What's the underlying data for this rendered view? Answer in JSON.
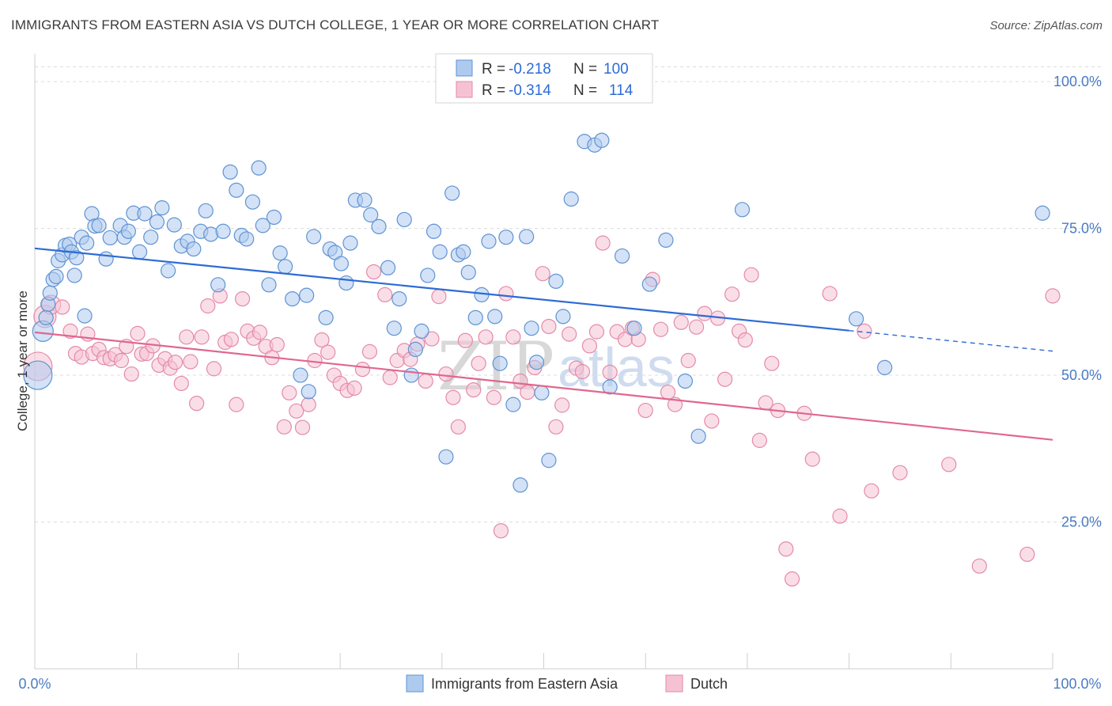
{
  "title": "IMMIGRANTS FROM EASTERN ASIA VS DUTCH COLLEGE, 1 YEAR OR MORE CORRELATION CHART",
  "source": "Source: ZipAtlas.com",
  "watermark": {
    "zip": "ZIP",
    "atlas": "atlas"
  },
  "legend": {
    "r_label": "R =",
    "n_label": "N =",
    "rows": [
      {
        "r": "-0.218",
        "n": "100"
      },
      {
        "r": "-0.314",
        "n": "114"
      }
    ]
  },
  "colors": {
    "blue_fill": "#aecbef",
    "blue_stroke": "#5f93d3",
    "blue_line": "#2d6bd6",
    "pink_fill": "#f6c2d3",
    "pink_stroke": "#e48aa8",
    "pink_line": "#e0678f",
    "grid": "#dcdcdc",
    "tick_label": "#4a7bc4"
  },
  "chart_data": {
    "type": "scatter",
    "title": "IMMIGRANTS FROM EASTERN ASIA VS DUTCH COLLEGE, 1 YEAR OR MORE CORRELATION CHART",
    "xlabel": "",
    "ylabel": "College, 1 year or more",
    "xlim": [
      0,
      100
    ],
    "ylim": [
      0,
      105
    ],
    "x_tick_labels": [
      "0.0%",
      "100.0%"
    ],
    "y_ticks": [
      {
        "value": 25,
        "label": "25.0%"
      },
      {
        "value": 50,
        "label": "50.0%"
      },
      {
        "value": 75,
        "label": "75.0%"
      },
      {
        "value": 100,
        "label": "100.0%"
      }
    ],
    "grid": true,
    "legend_position": "bottom",
    "series": [
      {
        "name": "Immigrants from Eastern Asia",
        "r": -0.218,
        "n": 100,
        "trend": {
          "x0": 0,
          "y0": 71.6,
          "x1": 80,
          "y1": 57.6,
          "dash_to_x": 100,
          "dash_to_y": 54.1
        },
        "points": [
          [
            0.3,
            50.0,
            18
          ],
          [
            0.8,
            57.5,
            13
          ],
          [
            1.1,
            59.8,
            9
          ],
          [
            1.3,
            62.1,
            9
          ],
          [
            1.5,
            64.0,
            9
          ],
          [
            1.8,
            66.3,
            9
          ],
          [
            2.1,
            66.8,
            9
          ],
          [
            2.3,
            69.5,
            9
          ],
          [
            2.7,
            70.5,
            9
          ],
          [
            3.0,
            72.1,
            9
          ],
          [
            3.4,
            72.3,
            9
          ],
          [
            3.6,
            71.0,
            9
          ],
          [
            3.9,
            67.0,
            9
          ],
          [
            4.1,
            70.0,
            9
          ],
          [
            4.9,
            60.1,
            9
          ],
          [
            4.6,
            73.5,
            9
          ],
          [
            5.1,
            72.5,
            9
          ],
          [
            5.6,
            77.5,
            9
          ],
          [
            5.9,
            75.4,
            9
          ],
          [
            6.3,
            75.5,
            9
          ],
          [
            7.0,
            69.8,
            9
          ],
          [
            7.4,
            73.4,
            9
          ],
          [
            8.4,
            75.5,
            9
          ],
          [
            8.8,
            73.5,
            9
          ],
          [
            9.2,
            74.5,
            9
          ],
          [
            9.7,
            77.6,
            9
          ],
          [
            10.3,
            71.0,
            9
          ],
          [
            10.8,
            77.5,
            9
          ],
          [
            11.4,
            73.5,
            9
          ],
          [
            12.0,
            76.1,
            9
          ],
          [
            12.5,
            78.5,
            9
          ],
          [
            13.1,
            67.8,
            9
          ],
          [
            13.7,
            75.6,
            9
          ],
          [
            14.4,
            72.0,
            9
          ],
          [
            15.0,
            72.8,
            9
          ],
          [
            15.6,
            71.5,
            9
          ],
          [
            16.3,
            74.5,
            9
          ],
          [
            16.8,
            78.0,
            9
          ],
          [
            17.3,
            74.0,
            9
          ],
          [
            18.0,
            65.4,
            9
          ],
          [
            18.5,
            74.5,
            9
          ],
          [
            19.2,
            84.6,
            9
          ],
          [
            19.8,
            81.5,
            9
          ],
          [
            20.3,
            73.8,
            9
          ],
          [
            20.8,
            73.2,
            9
          ],
          [
            21.4,
            79.5,
            9
          ],
          [
            22.0,
            85.3,
            9
          ],
          [
            22.4,
            75.5,
            9
          ],
          [
            23.0,
            65.4,
            9
          ],
          [
            23.5,
            76.9,
            9
          ],
          [
            24.1,
            70.8,
            9
          ],
          [
            24.6,
            68.5,
            9
          ],
          [
            25.3,
            63.0,
            9
          ],
          [
            26.1,
            50.0,
            9
          ],
          [
            26.7,
            63.6,
            9
          ],
          [
            26.9,
            47.2,
            9
          ],
          [
            27.4,
            73.6,
            9
          ],
          [
            28.6,
            59.8,
            9
          ],
          [
            29.0,
            71.5,
            9
          ],
          [
            29.5,
            70.9,
            9
          ],
          [
            30.1,
            69.0,
            9
          ],
          [
            30.6,
            65.7,
            9
          ],
          [
            31.0,
            72.5,
            9
          ],
          [
            31.5,
            79.8,
            9
          ],
          [
            32.4,
            79.8,
            9
          ],
          [
            33.0,
            77.3,
            9
          ],
          [
            33.8,
            75.3,
            9
          ],
          [
            34.7,
            68.3,
            9
          ],
          [
            35.3,
            58.0,
            9
          ],
          [
            35.8,
            63.0,
            9
          ],
          [
            36.3,
            76.5,
            9
          ],
          [
            37.0,
            50.0,
            9
          ],
          [
            37.4,
            54.4,
            9
          ],
          [
            38.0,
            57.5,
            9
          ],
          [
            38.6,
            67.0,
            9
          ],
          [
            39.2,
            74.5,
            9
          ],
          [
            39.8,
            71.0,
            9
          ],
          [
            40.4,
            36.1,
            9
          ],
          [
            41.0,
            81.0,
            9
          ],
          [
            41.6,
            70.5,
            9
          ],
          [
            42.1,
            71.0,
            9
          ],
          [
            42.6,
            67.5,
            9
          ],
          [
            43.3,
            59.8,
            9
          ],
          [
            43.9,
            63.7,
            9
          ],
          [
            44.6,
            72.8,
            9
          ],
          [
            45.2,
            60.0,
            9
          ],
          [
            45.7,
            52.0,
            9
          ],
          [
            46.3,
            73.5,
            9
          ],
          [
            47.0,
            45.0,
            9
          ],
          [
            47.7,
            31.3,
            9
          ],
          [
            48.3,
            73.6,
            9
          ],
          [
            48.8,
            58.0,
            9
          ],
          [
            49.3,
            52.2,
            9
          ],
          [
            49.8,
            47.0,
            9
          ],
          [
            50.5,
            35.5,
            9
          ],
          [
            51.2,
            66.0,
            9
          ],
          [
            51.9,
            60.0,
            9
          ],
          [
            52.7,
            80.0,
            9
          ],
          [
            54.0,
            89.8,
            9
          ],
          [
            55.0,
            89.2,
            9
          ],
          [
            55.7,
            90.0,
            9
          ],
          [
            56.5,
            48.0,
            9
          ],
          [
            57.7,
            70.3,
            9
          ],
          [
            58.9,
            58.0,
            9
          ],
          [
            60.4,
            65.5,
            9
          ],
          [
            62.0,
            73.0,
            9
          ],
          [
            63.9,
            49.0,
            9
          ],
          [
            65.2,
            39.6,
            9
          ],
          [
            69.5,
            78.2,
            9
          ],
          [
            80.7,
            59.6,
            9
          ],
          [
            83.5,
            51.3,
            9
          ],
          [
            99.0,
            77.6,
            9
          ]
        ]
      },
      {
        "name": "Dutch",
        "r": -0.314,
        "n": 114,
        "trend": {
          "x0": 0,
          "y0": 57.3,
          "x1": 100,
          "y1": 39.0
        },
        "points": [
          [
            0.3,
            51.5,
            18
          ],
          [
            1.0,
            60.0,
            14
          ],
          [
            1.6,
            62.0,
            12
          ],
          [
            2.7,
            61.6,
            9
          ],
          [
            3.5,
            57.5,
            9
          ],
          [
            4.0,
            53.7,
            9
          ],
          [
            4.6,
            53.1,
            9
          ],
          [
            5.2,
            57.0,
            9
          ],
          [
            5.7,
            53.7,
            9
          ],
          [
            6.3,
            54.4,
            9
          ],
          [
            6.8,
            53.0,
            9
          ],
          [
            7.4,
            52.8,
            9
          ],
          [
            7.9,
            53.5,
            9
          ],
          [
            8.5,
            52.5,
            9
          ],
          [
            9.0,
            54.9,
            9
          ],
          [
            9.5,
            50.2,
            9
          ],
          [
            10.1,
            57.1,
            9
          ],
          [
            10.5,
            53.6,
            9
          ],
          [
            11.0,
            53.7,
            9
          ],
          [
            11.6,
            55.0,
            9
          ],
          [
            12.2,
            51.7,
            9
          ],
          [
            12.8,
            52.8,
            9
          ],
          [
            13.3,
            51.2,
            9
          ],
          [
            13.8,
            52.2,
            9
          ],
          [
            14.4,
            48.6,
            9
          ],
          [
            14.9,
            56.5,
            9
          ],
          [
            15.3,
            52.3,
            9
          ],
          [
            15.9,
            45.2,
            9
          ],
          [
            16.4,
            56.5,
            9
          ],
          [
            17.0,
            61.8,
            9
          ],
          [
            17.6,
            51.1,
            9
          ],
          [
            18.2,
            63.5,
            9
          ],
          [
            18.7,
            55.6,
            9
          ],
          [
            19.3,
            56.1,
            9
          ],
          [
            19.8,
            45.0,
            9
          ],
          [
            20.4,
            63.0,
            9
          ],
          [
            20.9,
            57.5,
            9
          ],
          [
            21.5,
            56.3,
            9
          ],
          [
            22.1,
            57.3,
            9
          ],
          [
            22.7,
            54.9,
            9
          ],
          [
            23.3,
            53.0,
            9
          ],
          [
            23.8,
            55.2,
            9
          ],
          [
            24.5,
            41.2,
            9
          ],
          [
            25.0,
            47.0,
            9
          ],
          [
            25.7,
            43.9,
            9
          ],
          [
            26.3,
            41.1,
            9
          ],
          [
            26.9,
            45.0,
            9
          ],
          [
            27.5,
            52.5,
            9
          ],
          [
            28.2,
            56.0,
            9
          ],
          [
            28.8,
            53.9,
            9
          ],
          [
            29.4,
            50.0,
            9
          ],
          [
            30.0,
            48.6,
            9
          ],
          [
            30.7,
            47.4,
            9
          ],
          [
            31.4,
            47.8,
            9
          ],
          [
            32.2,
            51.0,
            9
          ],
          [
            32.9,
            54.0,
            9
          ],
          [
            33.3,
            67.6,
            9
          ],
          [
            34.4,
            63.7,
            9
          ],
          [
            34.9,
            49.6,
            9
          ],
          [
            35.6,
            52.5,
            9
          ],
          [
            36.3,
            54.2,
            9
          ],
          [
            36.9,
            52.7,
            9
          ],
          [
            37.6,
            55.3,
            9
          ],
          [
            38.4,
            49.0,
            9
          ],
          [
            39.0,
            56.2,
            9
          ],
          [
            39.7,
            63.4,
            9
          ],
          [
            40.4,
            50.2,
            9
          ],
          [
            41.1,
            46.2,
            9
          ],
          [
            41.6,
            41.2,
            9
          ],
          [
            42.3,
            55.9,
            9
          ],
          [
            43.1,
            47.5,
            9
          ],
          [
            43.6,
            52.0,
            9
          ],
          [
            44.3,
            56.5,
            9
          ],
          [
            45.1,
            46.2,
            9
          ],
          [
            45.8,
            23.5,
            9
          ],
          [
            46.3,
            63.9,
            9
          ],
          [
            47.0,
            56.5,
            9
          ],
          [
            47.7,
            49.0,
            9
          ],
          [
            48.4,
            47.1,
            9
          ],
          [
            49.1,
            51.3,
            9
          ],
          [
            49.9,
            67.3,
            9
          ],
          [
            50.5,
            58.3,
            9
          ],
          [
            51.2,
            41.2,
            9
          ],
          [
            51.8,
            44.9,
            9
          ],
          [
            52.5,
            57.0,
            9
          ],
          [
            53.2,
            51.2,
            9
          ],
          [
            53.8,
            50.6,
            9
          ],
          [
            54.5,
            55.0,
            9
          ],
          [
            55.2,
            57.4,
            9
          ],
          [
            55.8,
            72.5,
            9
          ],
          [
            56.5,
            50.5,
            9
          ],
          [
            57.2,
            57.4,
            9
          ],
          [
            58.0,
            56.1,
            9
          ],
          [
            58.7,
            58.0,
            9
          ],
          [
            59.3,
            56.1,
            9
          ],
          [
            60.0,
            44.0,
            9
          ],
          [
            60.7,
            66.3,
            9
          ],
          [
            61.5,
            57.8,
            9
          ],
          [
            62.2,
            47.1,
            9
          ],
          [
            62.9,
            45.0,
            9
          ],
          [
            63.5,
            59.0,
            9
          ],
          [
            64.2,
            52.5,
            9
          ],
          [
            65.0,
            58.2,
            9
          ],
          [
            65.8,
            60.5,
            9
          ],
          [
            66.5,
            42.2,
            9
          ],
          [
            67.1,
            59.7,
            9
          ],
          [
            67.8,
            49.3,
            9
          ],
          [
            68.5,
            63.8,
            9
          ],
          [
            69.2,
            57.5,
            9
          ],
          [
            69.8,
            56.0,
            9
          ],
          [
            70.4,
            67.1,
            9
          ],
          [
            71.2,
            38.9,
            9
          ],
          [
            71.8,
            45.3,
            9
          ],
          [
            72.4,
            52.0,
            9
          ],
          [
            73.0,
            44.0,
            9
          ],
          [
            73.8,
            20.4,
            9
          ],
          [
            74.4,
            15.3,
            9
          ],
          [
            75.6,
            43.5,
            9
          ],
          [
            76.4,
            35.7,
            9
          ],
          [
            78.1,
            63.9,
            9
          ],
          [
            79.1,
            26.0,
            9
          ],
          [
            81.5,
            57.5,
            9
          ],
          [
            82.2,
            30.3,
            9
          ],
          [
            85.0,
            33.4,
            9
          ],
          [
            89.8,
            34.8,
            9
          ],
          [
            92.8,
            17.5,
            9
          ],
          [
            97.5,
            19.5,
            9
          ],
          [
            100.0,
            63.5,
            9
          ]
        ]
      }
    ]
  }
}
